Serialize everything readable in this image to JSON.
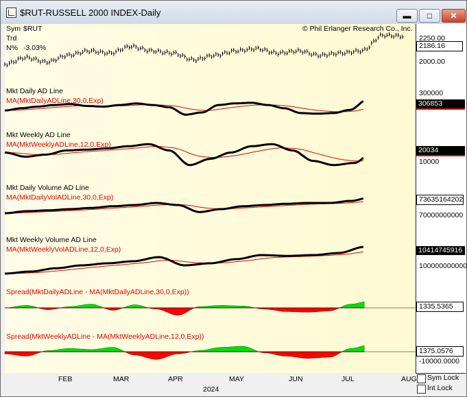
{
  "window": {
    "title": "$RUT-RUSSELL 2000 INDEX-Daily",
    "minimize_icon": "minimize-icon",
    "maximize_icon": "maximize-icon",
    "close_icon": "close-icon"
  },
  "header": {
    "sym_label": "Sym",
    "sym_value": "$RUT",
    "trd_label": "Trd",
    "npct_label": "N%",
    "npct_value": "-3.03%",
    "copyright": "© Phil Erlanger Research Co., Inc."
  },
  "panels": [
    {
      "label": "",
      "ma_label": "",
      "ticks": [
        "2250.00",
        "2000.00"
      ],
      "value_box": "2186.16"
    },
    {
      "label": "Mkt Daily AD Line",
      "ma_label": "MA(MktDailyADLine,30,0,Exp)",
      "ticks": [
        "300000"
      ],
      "value_box": "306853"
    },
    {
      "label": "Mkt Weekly AD Line",
      "ma_label": "MA(MktWeeklyADLine,12,0,Exp)",
      "ticks": [
        "10000"
      ],
      "value_box": "20034"
    },
    {
      "label": "Mkt Daily Volume AD Line",
      "ma_label": "MA(MktDailyVolADLine,30,0,Exp)",
      "ticks": [
        "70000000000"
      ],
      "value_box": "73635164202"
    },
    {
      "label": "Mkt Weekly Volume AD Line",
      "ma_label": "MA(MktWeeklyVolADLine,12,0,Exp)",
      "ticks": [
        "100000000000"
      ],
      "value_box": "10414745916"
    },
    {
      "label": "Spread(MktDailyADLine - MA(MktDailyADLine,30,0,Exp))",
      "ma_label": "",
      "ticks": [],
      "value_box": "1335.5365"
    },
    {
      "label": "Spread(MktWeeklyADLine - MA(MktWeeklyADLine,12,0,Exp))",
      "ma_label": "",
      "ticks": [
        "-10000.0000"
      ],
      "value_box": "1375.0576"
    }
  ],
  "xaxis": {
    "months": [
      "FEB",
      "MAR",
      "APR",
      "MAY",
      "JUN",
      "JUL",
      "AUG"
    ],
    "year": "2024"
  },
  "options": {
    "sym_lock": "Sym Lock",
    "int_lock": "Int Lock"
  },
  "colors": {
    "price": "#000000",
    "line": "#000000",
    "ma": "#e00000",
    "spread_pos": "#00e000",
    "spread_neg": "#ff0000",
    "panel_bg": "#fffbd8"
  }
}
